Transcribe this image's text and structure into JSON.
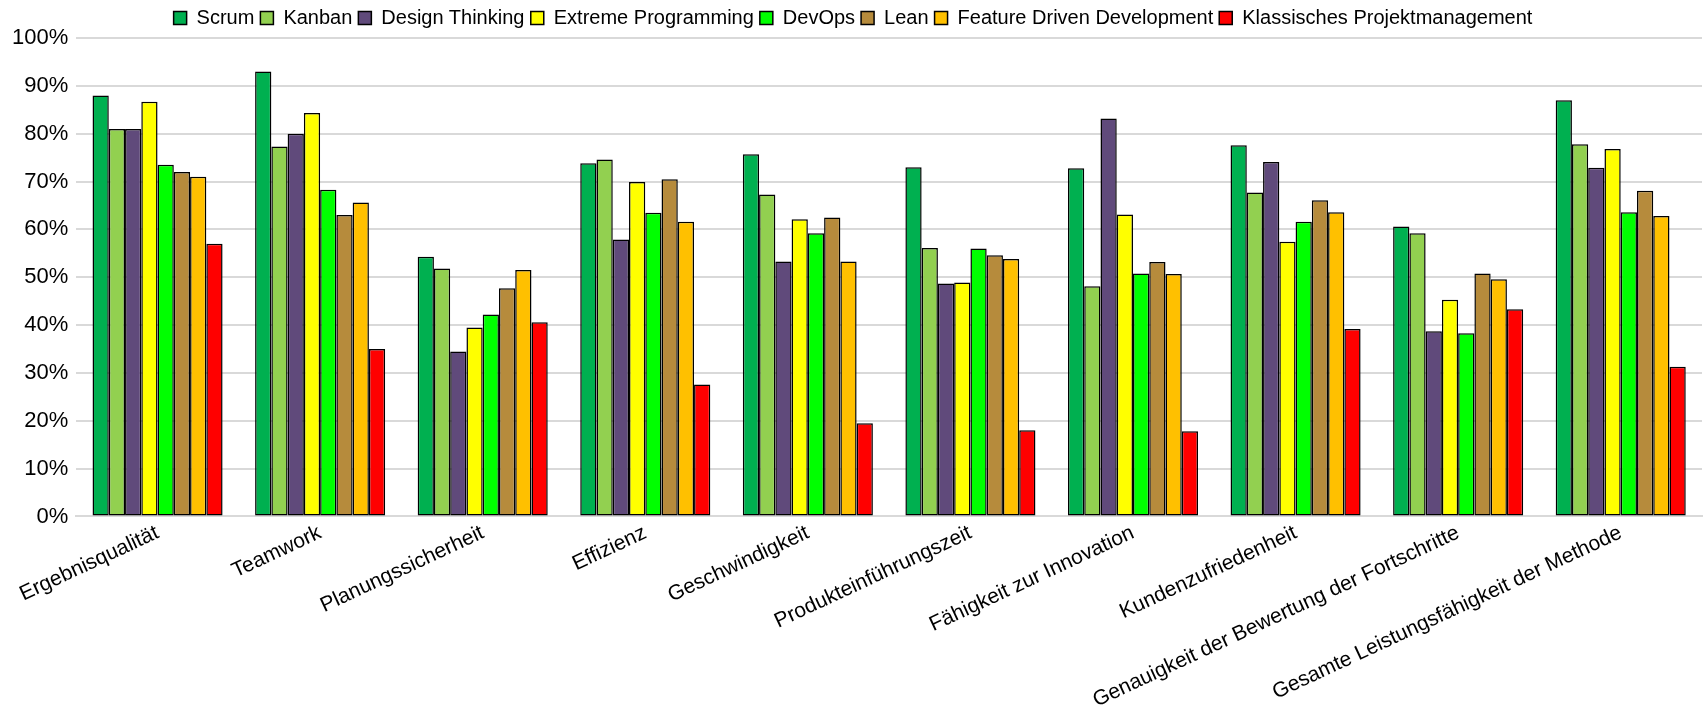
{
  "chart_data": {
    "type": "bar",
    "categories": [
      "Ergebnisqualität",
      "Teamwork",
      "Planungssicherheit",
      "Effizienz",
      "Geschwindigkeit",
      "Produkteinführungszeit",
      "Fähigkeit zur Innovation",
      "Kundenzufriedenheit",
      "Genauigkeit der Bewertung der Fortschritte",
      "Gesamte Leistungsfähigkeit der Methode"
    ],
    "series": [
      {
        "name": "Scrum",
        "color": "#00b050",
        "values": [
          88,
          93,
          54.3,
          73.8,
          75.7,
          73,
          72.8,
          77.6,
          60.6,
          87
        ]
      },
      {
        "name": "Kanban",
        "color": "#92d050",
        "values": [
          81,
          77.3,
          51.8,
          74.6,
          67.3,
          56.1,
          48.1,
          67.7,
          59.2,
          77.8
        ]
      },
      {
        "name": "Design Thinking",
        "color": "#604a7b",
        "values": [
          81,
          80,
          34.5,
          57.9,
          53.3,
          48.7,
          83.2,
          74.1,
          38.7,
          72.9
        ]
      },
      {
        "name": "Extreme Programming",
        "color": "#ffff00",
        "values": [
          86.7,
          84.3,
          39.5,
          69.9,
          62.1,
          48.9,
          63.1,
          57.4,
          45.3,
          76.8
        ]
      },
      {
        "name": "DevOps",
        "color": "#00ff00",
        "values": [
          73.5,
          68.3,
          42.2,
          63.5,
          59.2,
          56,
          50.8,
          61.6,
          38.3,
          63.6
        ]
      },
      {
        "name": "Lean",
        "color": "#b68b3c",
        "values": [
          72,
          63,
          47.7,
          70.5,
          62.5,
          54.6,
          53.2,
          66.1,
          50.8,
          68.1
        ]
      },
      {
        "name": "Feature Driven Development",
        "color": "#ffc000",
        "values": [
          71,
          65.6,
          51.5,
          61.6,
          53.3,
          53.8,
          50.7,
          63.6,
          49.6,
          62.8
        ]
      },
      {
        "name": "Klassisches Projektmanagement",
        "color": "#ff0000",
        "values": [
          57,
          35,
          40.6,
          27.6,
          19.5,
          18,
          17.8,
          39.2,
          43.3,
          31.3
        ]
      }
    ],
    "ylim": [
      0,
      100
    ],
    "yticks": [
      {
        "value": 0,
        "label": "0%"
      },
      {
        "value": 10,
        "label": "10%"
      },
      {
        "value": 20,
        "label": "20%"
      },
      {
        "value": 30,
        "label": "30%"
      },
      {
        "value": 40,
        "label": "40%"
      },
      {
        "value": 50,
        "label": "50%"
      },
      {
        "value": 60,
        "label": "60%"
      },
      {
        "value": 70,
        "label": "70%"
      },
      {
        "value": 80,
        "label": "80%"
      },
      {
        "value": 90,
        "label": "90%"
      },
      {
        "value": 100,
        "label": "100%"
      }
    ],
    "grid": "y",
    "legend": "top"
  }
}
